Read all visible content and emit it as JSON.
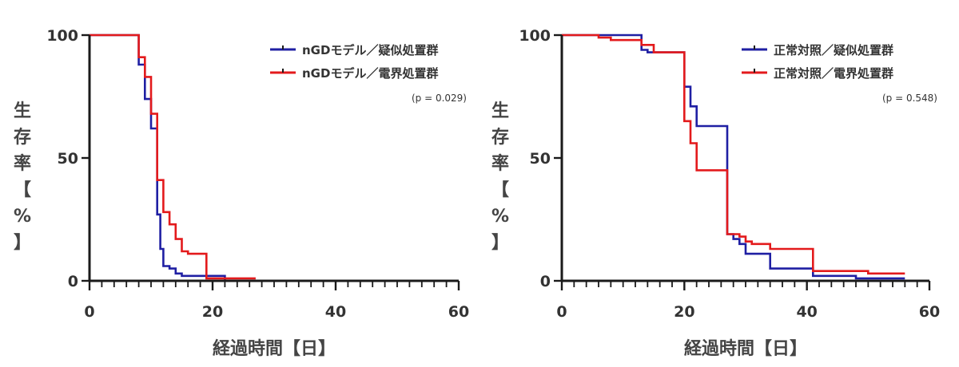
{
  "chart_data": [
    {
      "type": "line",
      "xlabel": "経過時間【日】",
      "ylabel": "生存率【%】",
      "xlim": [
        0,
        60
      ],
      "ylim": [
        0,
        100
      ],
      "x_ticks": [
        0,
        20,
        40,
        60
      ],
      "y_ticks": [
        0,
        50,
        100
      ],
      "legend_position": "top-right",
      "p_value_label": "(p = 0.029)",
      "series": [
        {
          "name": "nGDモデル／疑似処置群",
          "color": "#1f1fa3",
          "x": [
            0,
            8,
            8,
            9,
            9,
            10,
            10,
            11,
            11,
            11.5,
            11.5,
            12,
            12,
            13,
            13,
            14,
            14,
            15,
            15,
            22,
            22
          ],
          "y": [
            100,
            100,
            88,
            88,
            74,
            74,
            62,
            62,
            27,
            27,
            13,
            13,
            6,
            6,
            5,
            5,
            3,
            3,
            2,
            2,
            0
          ]
        },
        {
          "name": "nGDモデル／電界処置群",
          "color": "#e31a1c",
          "x": [
            0,
            8,
            8,
            9,
            9,
            10,
            10,
            11,
            11,
            12,
            12,
            13,
            13,
            14,
            14,
            15,
            15,
            16,
            16,
            19,
            19,
            27
          ],
          "y": [
            100,
            100,
            91,
            91,
            83,
            83,
            68,
            68,
            41,
            41,
            28,
            28,
            23,
            23,
            17,
            17,
            12,
            12,
            11,
            11,
            1,
            1
          ]
        }
      ]
    },
    {
      "type": "line",
      "xlabel": "経過時間【日】",
      "ylabel": "生存率【%】",
      "xlim": [
        0,
        60
      ],
      "ylim": [
        0,
        100
      ],
      "x_ticks": [
        0,
        20,
        40,
        60
      ],
      "y_ticks": [
        0,
        50,
        100
      ],
      "legend_position": "top-right",
      "p_value_label": "(p = 0.548)",
      "series": [
        {
          "name": "正常対照／疑似処置群",
          "color": "#1f1fa3",
          "x": [
            0,
            13,
            13,
            14,
            14,
            20,
            20,
            21,
            21,
            22,
            22,
            27,
            27,
            28,
            28,
            29,
            29,
            30,
            30,
            34,
            34,
            41,
            41,
            48,
            48,
            56
          ],
          "y": [
            100,
            100,
            94,
            94,
            93,
            93,
            79,
            79,
            71,
            71,
            63,
            63,
            19,
            19,
            17,
            17,
            15,
            15,
            11,
            11,
            5,
            5,
            2,
            2,
            1,
            1
          ]
        },
        {
          "name": "正常対照／電界処置群",
          "color": "#e31a1c",
          "x": [
            0,
            6,
            6,
            8,
            8,
            13,
            13,
            15,
            15,
            20,
            20,
            21,
            21,
            22,
            22,
            27,
            27,
            29,
            29,
            30,
            30,
            31,
            31,
            34,
            34,
            41,
            41,
            50,
            50,
            56
          ],
          "y": [
            100,
            100,
            99,
            99,
            98,
            98,
            96,
            96,
            93,
            93,
            65,
            65,
            56,
            56,
            45,
            45,
            19,
            19,
            18,
            18,
            16,
            16,
            15,
            15,
            13,
            13,
            4,
            4,
            3,
            3
          ]
        }
      ]
    }
  ]
}
